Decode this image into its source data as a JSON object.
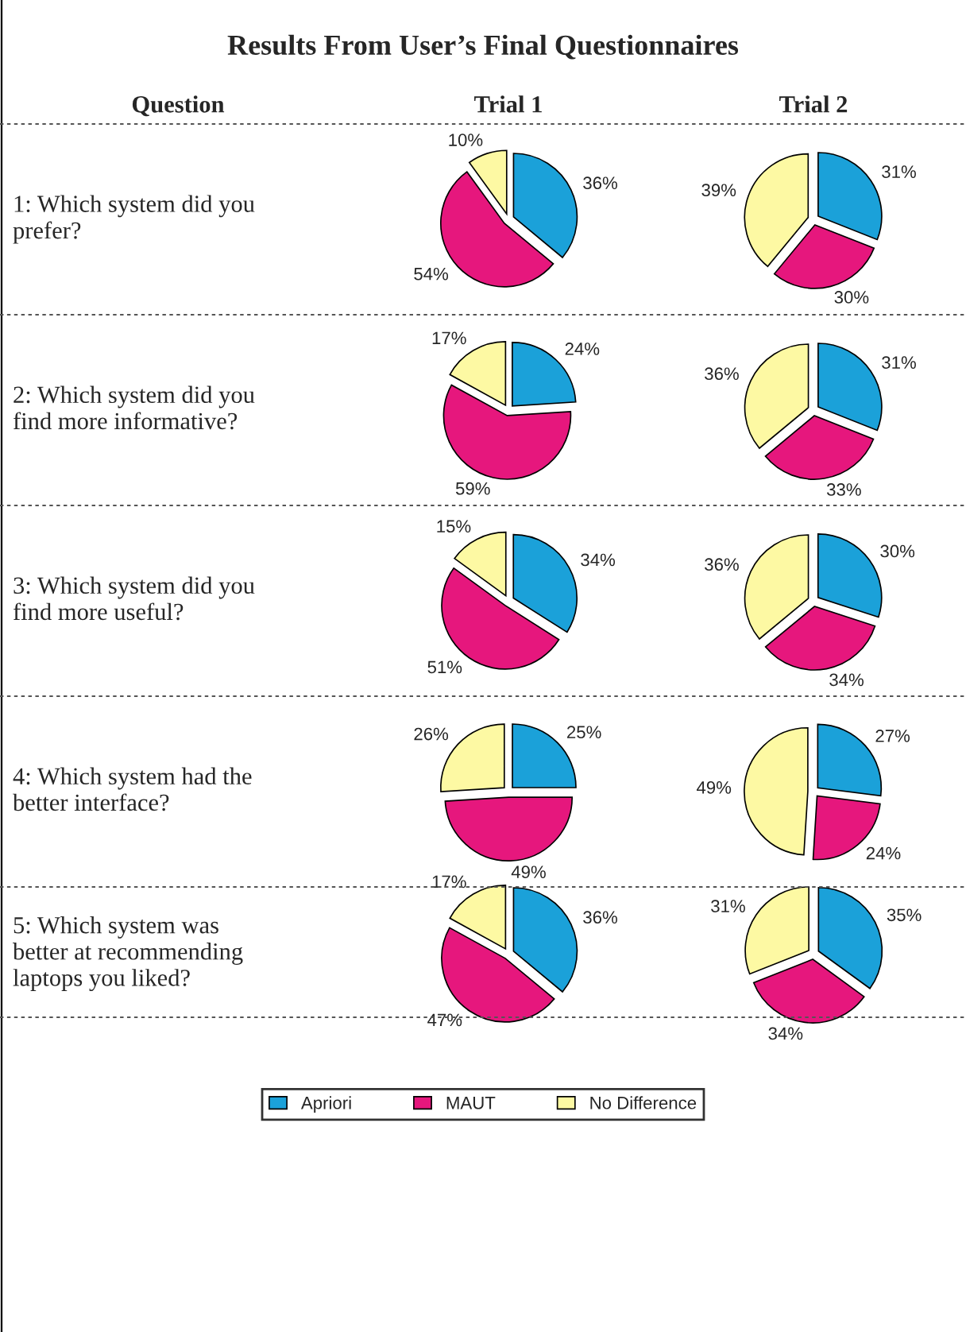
{
  "chart_data": [
    {
      "type": "other",
      "title": "Results From User’s Final Questionnaires",
      "annotations": [
        "Question",
        "Trial 1",
        "Trial 2",
        "1: Which system did you\nprefer?",
        "2: Which system did you\nfind more informative?",
        "3: Which system did you\nfind more useful?",
        "4: Which system had the\nbetter interface?",
        "5: Which system was\nbetter at recommending\nlaptops you liked?"
      ]
    },
    {
      "type": "pie",
      "categories": [
        "Apriori",
        "MAUT",
        "No Difference"
      ],
      "values": [
        36,
        54,
        10
      ],
      "value_labels": [
        "36%",
        "54%",
        "10%"
      ],
      "colors": [
        "#1ba1d9",
        "#e6177d",
        "#fdf9a3"
      ],
      "legend": "bottom"
    },
    {
      "type": "pie",
      "categories": [
        null,
        null,
        null
      ],
      "values": [
        31,
        30,
        39
      ],
      "value_labels": [
        "31%",
        "30%",
        "39%"
      ],
      "colors": [
        "#1ba1d9",
        "#e6177d",
        "#fdf9a3"
      ]
    },
    {
      "type": "pie",
      "categories": [
        null,
        null,
        null
      ],
      "values": [
        24,
        59,
        17
      ],
      "value_labels": [
        "24%",
        "59%",
        "17%"
      ],
      "colors": [
        "#1ba1d9",
        "#e6177d",
        "#fdf9a3"
      ]
    },
    {
      "type": "pie",
      "categories": [
        null,
        null,
        null
      ],
      "values": [
        31,
        33,
        36
      ],
      "value_labels": [
        "31%",
        "33%",
        "36%"
      ],
      "colors": [
        "#1ba1d9",
        "#e6177d",
        "#fdf9a3"
      ]
    },
    {
      "type": "pie",
      "categories": [
        null,
        null,
        null
      ],
      "values": [
        34,
        51,
        15
      ],
      "value_labels": [
        "34%",
        "51%",
        "15%"
      ],
      "colors": [
        "#1ba1d9",
        "#e6177d",
        "#fdf9a3"
      ]
    },
    {
      "type": "pie",
      "categories": [
        null,
        null,
        null
      ],
      "values": [
        30,
        34,
        36
      ],
      "value_labels": [
        "30%",
        "34%",
        "36%"
      ],
      "colors": [
        "#1ba1d9",
        "#e6177d",
        "#fdf9a3"
      ]
    },
    {
      "type": "pie",
      "categories": [
        null,
        null,
        null
      ],
      "values": [
        25,
        49,
        26
      ],
      "value_labels": [
        "25%",
        "49%",
        "26%"
      ],
      "colors": [
        "#1ba1d9",
        "#e6177d",
        "#fdf9a3"
      ]
    },
    {
      "type": "pie",
      "categories": [
        null,
        null,
        null
      ],
      "values": [
        27,
        24,
        49
      ],
      "value_labels": [
        "27%",
        "24%",
        "49%"
      ],
      "colors": [
        "#1ba1d9",
        "#e6177d",
        "#fdf9a3"
      ]
    },
    {
      "type": "pie",
      "categories": [
        null,
        null,
        null
      ],
      "values": [
        36,
        47,
        17
      ],
      "value_labels": [
        "36%",
        "47%",
        "17%"
      ],
      "colors": [
        "#1ba1d9",
        "#e6177d",
        "#fdf9a3"
      ]
    },
    {
      "type": "pie",
      "categories": [
        null,
        null,
        null
      ],
      "values": [
        35,
        34,
        31
      ],
      "value_labels": [
        "35%",
        "34%",
        "31%"
      ],
      "colors": [
        "#1ba1d9",
        "#e6177d",
        "#fdf9a3"
      ]
    }
  ]
}
